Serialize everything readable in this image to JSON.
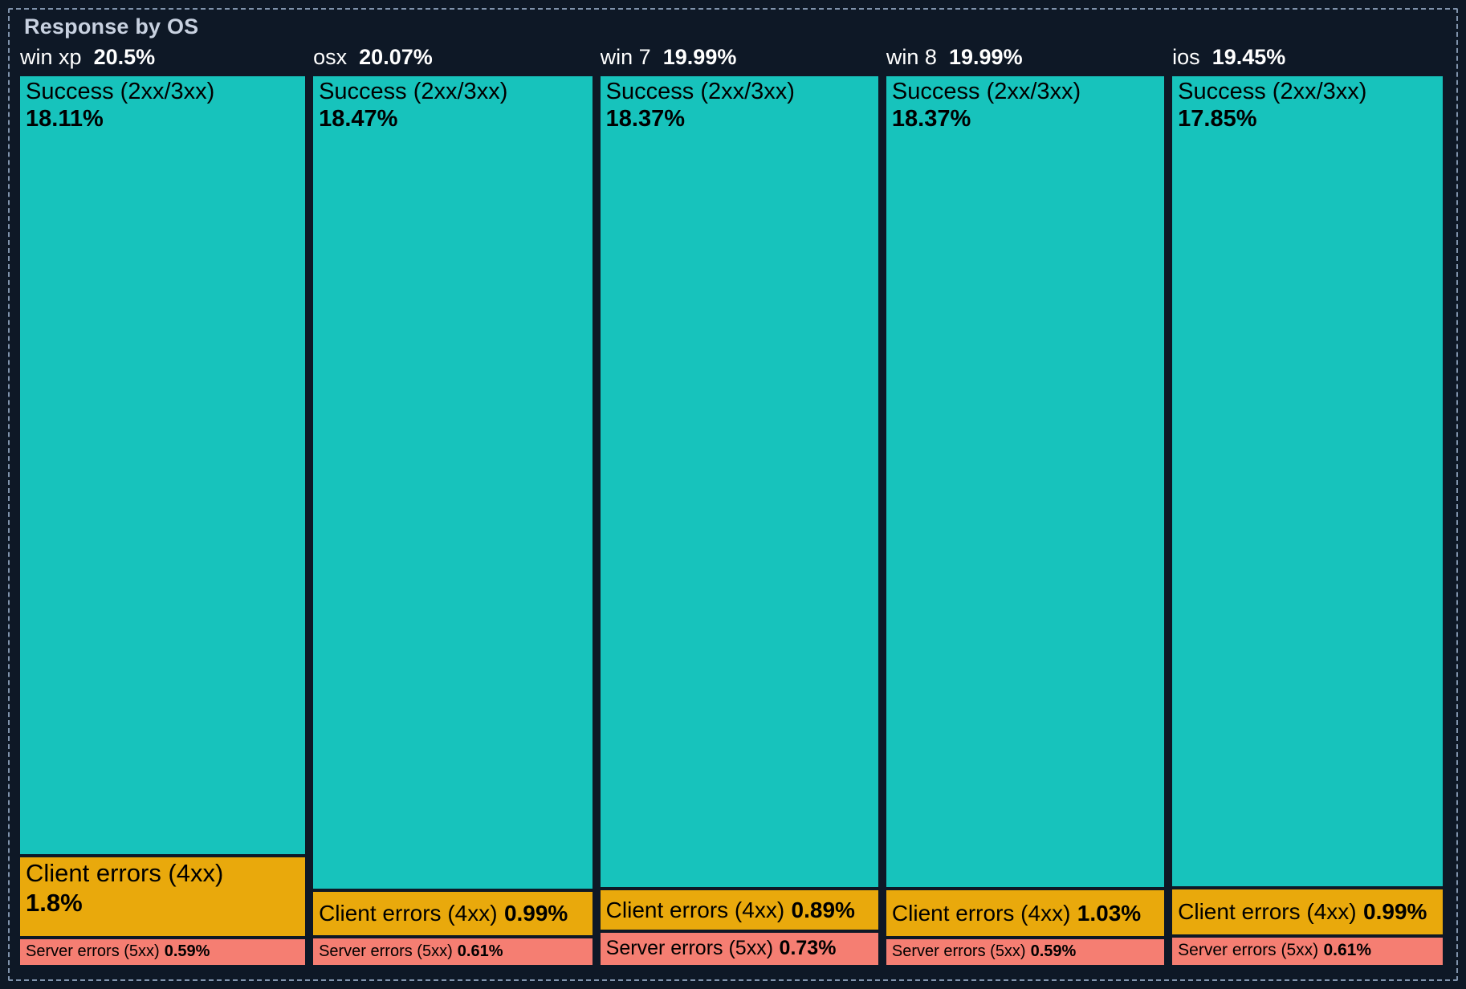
{
  "panel": {
    "title": "Response by OS"
  },
  "colors": {
    "background": "#0E1826",
    "panel_border": "#8093AC",
    "title_text": "#C8D1E0",
    "header_text": "#FFFFFF",
    "segment_text": "#000000",
    "success": "#17C3BC",
    "client_errors": "#E9A90C",
    "server_errors": "#F57E72"
  },
  "chart_data": {
    "type": "treemap",
    "title": "Response by OS",
    "layout": "slice-dice: column width proportional to OS total, segment height proportional to value",
    "legend": "none",
    "unit": "percent",
    "groups": [
      {
        "name": "win xp",
        "total": 20.5,
        "total_label": "20.5%",
        "segments": [
          {
            "label": "Success (2xx/3xx)",
            "value": 18.11,
            "value_label": "18.11%",
            "category": "success"
          },
          {
            "label": "Client errors (4xx)",
            "value": 1.8,
            "value_label": "1.8%",
            "category": "client_errors"
          },
          {
            "label": "Server errors (5xx)",
            "value": 0.59,
            "value_label": "0.59%",
            "category": "server_errors"
          }
        ]
      },
      {
        "name": "osx",
        "total": 20.07,
        "total_label": "20.07%",
        "segments": [
          {
            "label": "Success (2xx/3xx)",
            "value": 18.47,
            "value_label": "18.47%",
            "category": "success"
          },
          {
            "label": "Client errors (4xx)",
            "value": 0.99,
            "value_label": "0.99%",
            "category": "client_errors"
          },
          {
            "label": "Server errors (5xx)",
            "value": 0.61,
            "value_label": "0.61%",
            "category": "server_errors"
          }
        ]
      },
      {
        "name": "win 7",
        "total": 19.99,
        "total_label": "19.99%",
        "segments": [
          {
            "label": "Success (2xx/3xx)",
            "value": 18.37,
            "value_label": "18.37%",
            "category": "success"
          },
          {
            "label": "Client errors (4xx)",
            "value": 0.89,
            "value_label": "0.89%",
            "category": "client_errors"
          },
          {
            "label": "Server errors (5xx)",
            "value": 0.73,
            "value_label": "0.73%",
            "category": "server_errors"
          }
        ]
      },
      {
        "name": "win 8",
        "total": 19.99,
        "total_label": "19.99%",
        "segments": [
          {
            "label": "Success (2xx/3xx)",
            "value": 18.37,
            "value_label": "18.37%",
            "category": "success"
          },
          {
            "label": "Client errors (4xx)",
            "value": 1.03,
            "value_label": "1.03%",
            "category": "client_errors"
          },
          {
            "label": "Server errors (5xx)",
            "value": 0.59,
            "value_label": "0.59%",
            "category": "server_errors"
          }
        ]
      },
      {
        "name": "ios",
        "total": 19.45,
        "total_label": "19.45%",
        "segments": [
          {
            "label": "Success (2xx/3xx)",
            "value": 17.85,
            "value_label": "17.85%",
            "category": "success"
          },
          {
            "label": "Client errors (4xx)",
            "value": 0.99,
            "value_label": "0.99%",
            "category": "client_errors"
          },
          {
            "label": "Server errors (5xx)",
            "value": 0.61,
            "value_label": "0.61%",
            "category": "server_errors"
          }
        ]
      }
    ]
  }
}
